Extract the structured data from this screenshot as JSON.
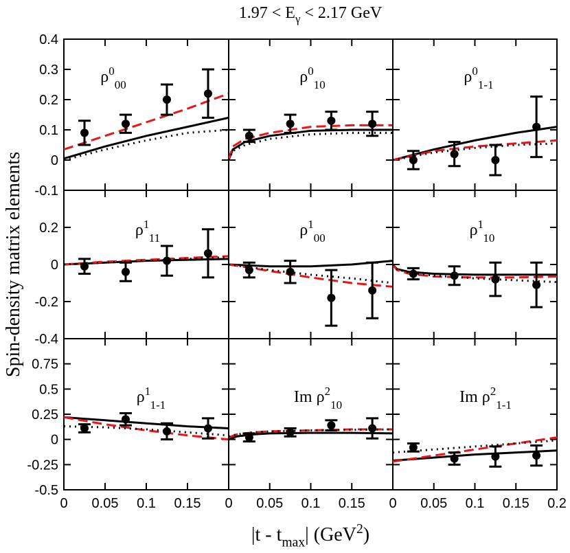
{
  "figure": {
    "title": [
      {
        "text": "1.97 < E"
      },
      {
        "text": "γ",
        "sub": true
      },
      {
        "text": " < 2.17 GeV"
      }
    ],
    "x_label": [
      {
        "text": "|t - t"
      },
      {
        "text": "max",
        "sub": true
      },
      {
        "text": "| (GeV"
      },
      {
        "text": "2",
        "sup": true
      },
      {
        "text": ")"
      }
    ],
    "y_label": "Spin-density matrix elements"
  },
  "chart_data": [
    {
      "type": "errorbar",
      "label": {
        "base": "ρ",
        "sup": "0",
        "sub": "00"
      },
      "xlim": [
        0,
        0.2
      ],
      "ylim": [
        -0.1,
        0.4
      ],
      "yticks": [
        -0.1,
        0,
        0.1,
        0.2,
        0.3,
        0.4
      ],
      "x": [
        0.025,
        0.075,
        0.125,
        0.175
      ],
      "values": [
        0.09,
        0.12,
        0.2,
        0.22
      ],
      "errors": [
        0.04,
        0.03,
        0.05,
        0.08
      ],
      "color": "#000000",
      "lines": [
        {
          "color": "#000000",
          "dash": "solid",
          "x": [
            0,
            0.05,
            0.1,
            0.15,
            0.2
          ],
          "values": [
            0.005,
            0.045,
            0.08,
            0.11,
            0.14
          ]
        },
        {
          "color": "#e8161a",
          "dash": "dashed",
          "x": [
            0,
            0.05,
            0.1,
            0.15,
            0.2
          ],
          "values": [
            0.035,
            0.08,
            0.125,
            0.17,
            0.22
          ]
        },
        {
          "color": "#000000",
          "dash": "dotted",
          "x": [
            0,
            0.05,
            0.1,
            0.15,
            0.2
          ],
          "values": [
            0,
            0.035,
            0.065,
            0.09,
            0.1
          ]
        }
      ]
    },
    {
      "type": "errorbar",
      "label": {
        "base": "ρ",
        "sup": "0",
        "sub": "10"
      },
      "xlim": [
        0,
        0.2
      ],
      "ylim": [
        -0.1,
        0.4
      ],
      "x": [
        0.025,
        0.075,
        0.125,
        0.175
      ],
      "values": [
        0.08,
        0.12,
        0.13,
        0.12
      ],
      "errors": [
        0.02,
        0.03,
        0.03,
        0.04
      ],
      "color": "#000000",
      "lines": [
        {
          "color": "#000000",
          "dash": "solid",
          "x": [
            0,
            0.005,
            0.02,
            0.05,
            0.1,
            0.15,
            0.2
          ],
          "values": [
            0,
            0.035,
            0.06,
            0.08,
            0.097,
            0.1,
            0.1
          ]
        },
        {
          "color": "#e8161a",
          "dash": "dashed",
          "x": [
            0,
            0.005,
            0.02,
            0.05,
            0.1,
            0.15,
            0.2
          ],
          "values": [
            0,
            0.045,
            0.07,
            0.09,
            0.11,
            0.115,
            0.115
          ]
        },
        {
          "color": "#000000",
          "dash": "dotted",
          "x": [
            0,
            0.005,
            0.02,
            0.05,
            0.1,
            0.15,
            0.2
          ],
          "values": [
            0,
            0.03,
            0.05,
            0.07,
            0.085,
            0.09,
            0.09
          ]
        }
      ]
    },
    {
      "type": "errorbar",
      "label": {
        "base": "ρ",
        "sup": "0",
        "sub": "1-1"
      },
      "xlim": [
        0,
        0.2
      ],
      "ylim": [
        -0.1,
        0.4
      ],
      "x": [
        0.025,
        0.075,
        0.125,
        0.175
      ],
      "values": [
        0,
        0.02,
        0,
        0.11
      ],
      "errors": [
        0.03,
        0.04,
        0.05,
        0.1
      ],
      "color": "#000000",
      "lines": [
        {
          "color": "#000000",
          "dash": "solid",
          "x": [
            0,
            0.05,
            0.1,
            0.15,
            0.2
          ],
          "values": [
            0,
            0.035,
            0.065,
            0.09,
            0.11
          ]
        },
        {
          "color": "#e8161a",
          "dash": "dashed",
          "x": [
            0,
            0.05,
            0.1,
            0.15,
            0.2
          ],
          "values": [
            0,
            0.03,
            0.045,
            0.055,
            0.065
          ]
        },
        {
          "color": "#000000",
          "dash": "dotted",
          "x": [
            0,
            0.05,
            0.1,
            0.15,
            0.2
          ],
          "values": [
            0,
            0.025,
            0.04,
            0.05,
            0.055
          ]
        }
      ]
    },
    {
      "type": "errorbar",
      "label": {
        "base": "ρ",
        "sup": "1",
        "sub": "11"
      },
      "xlim": [
        0,
        0.2
      ],
      "ylim": [
        -0.4,
        0.4
      ],
      "yticks": [
        -0.4,
        -0.2,
        0,
        0.2
      ],
      "x": [
        0.025,
        0.075,
        0.125,
        0.175
      ],
      "values": [
        -0.01,
        -0.04,
        0.02,
        0.06
      ],
      "errors": [
        0.04,
        0.05,
        0.08,
        0.13
      ],
      "color": "#000000",
      "lines": [
        {
          "color": "#000000",
          "dash": "solid",
          "x": [
            0,
            0.05,
            0.1,
            0.15,
            0.2
          ],
          "values": [
            0,
            0.01,
            0.02,
            0.025,
            0.03
          ]
        },
        {
          "color": "#e8161a",
          "dash": "dashed",
          "x": [
            0,
            0.05,
            0.1,
            0.15,
            0.2
          ],
          "values": [
            0,
            0.015,
            0.025,
            0.035,
            0.045
          ]
        },
        {
          "color": "#000000",
          "dash": "dotted",
          "x": [
            0,
            0.05,
            0.1,
            0.15,
            0.2
          ],
          "values": [
            0,
            0.01,
            0.02,
            0.03,
            0.04
          ]
        }
      ]
    },
    {
      "type": "errorbar",
      "label": {
        "base": "ρ",
        "sup": "1",
        "sub": "00"
      },
      "xlim": [
        0,
        0.2
      ],
      "ylim": [
        -0.4,
        0.4
      ],
      "x": [
        0.025,
        0.075,
        0.125,
        0.175
      ],
      "values": [
        -0.03,
        -0.04,
        -0.18,
        -0.14
      ],
      "errors": [
        0.04,
        0.06,
        0.15,
        0.15
      ],
      "color": "#000000",
      "lines": [
        {
          "color": "#000000",
          "dash": "solid",
          "x": [
            0,
            0.05,
            0.1,
            0.15,
            0.2
          ],
          "values": [
            0,
            -0.01,
            -0.01,
            0,
            0.02
          ]
        },
        {
          "color": "#e8161a",
          "dash": "dashed",
          "x": [
            0,
            0.05,
            0.1,
            0.15,
            0.2
          ],
          "values": [
            0,
            -0.035,
            -0.07,
            -0.1,
            -0.12
          ]
        },
        {
          "color": "#000000",
          "dash": "dotted",
          "x": [
            0,
            0.05,
            0.1,
            0.15,
            0.2
          ],
          "values": [
            0,
            -0.03,
            -0.055,
            -0.075,
            -0.1
          ]
        }
      ]
    },
    {
      "type": "errorbar",
      "label": {
        "base": "ρ",
        "sup": "1",
        "sub": "10"
      },
      "xlim": [
        0,
        0.2
      ],
      "ylim": [
        -0.4,
        0.4
      ],
      "x": [
        0.025,
        0.075,
        0.125,
        0.175
      ],
      "values": [
        -0.05,
        -0.06,
        -0.08,
        -0.11
      ],
      "errors": [
        0.03,
        0.05,
        0.09,
        0.12
      ],
      "color": "#000000",
      "lines": [
        {
          "color": "#000000",
          "dash": "solid",
          "x": [
            0,
            0.005,
            0.02,
            0.05,
            0.1,
            0.15,
            0.2
          ],
          "values": [
            0,
            -0.025,
            -0.04,
            -0.05,
            -0.055,
            -0.055,
            -0.055
          ]
        },
        {
          "color": "#e8161a",
          "dash": "dashed",
          "x": [
            0,
            0.005,
            0.02,
            0.05,
            0.1,
            0.15,
            0.2
          ],
          "values": [
            0,
            -0.03,
            -0.05,
            -0.065,
            -0.07,
            -0.07,
            -0.065
          ]
        },
        {
          "color": "#000000",
          "dash": "dotted",
          "x": [
            0,
            0.005,
            0.02,
            0.05,
            0.1,
            0.15,
            0.2
          ],
          "values": [
            0,
            -0.025,
            -0.045,
            -0.06,
            -0.075,
            -0.085,
            -0.095
          ]
        }
      ]
    },
    {
      "type": "errorbar",
      "label": {
        "base": "ρ",
        "sup": "1",
        "sub": "1-1"
      },
      "xlim": [
        0,
        0.2
      ],
      "ylim": [
        -0.5,
        1
      ],
      "yticks": [
        -0.5,
        -0.25,
        0,
        0.25,
        0.5,
        0.75
      ],
      "xticks": [
        0,
        0.05,
        0.1,
        0.15
      ],
      "x": [
        0.025,
        0.075,
        0.125,
        0.175
      ],
      "values": [
        0.11,
        0.2,
        0.08,
        0.11
      ],
      "errors": [
        0.04,
        0.06,
        0.08,
        0.1
      ],
      "color": "#000000",
      "lines": [
        {
          "color": "#000000",
          "dash": "solid",
          "x": [
            0,
            0.05,
            0.1,
            0.15,
            0.2
          ],
          "values": [
            0.22,
            0.19,
            0.16,
            0.13,
            0.11
          ]
        },
        {
          "color": "#e8161a",
          "dash": "dashed",
          "x": [
            0,
            0.05,
            0.1,
            0.15,
            0.2
          ],
          "values": [
            0.22,
            0.15,
            0.09,
            0.04,
            0
          ]
        },
        {
          "color": "#000000",
          "dash": "dotted",
          "x": [
            0,
            0.05,
            0.1,
            0.15,
            0.2
          ],
          "values": [
            0.13,
            0.12,
            0.1,
            0.07,
            0.04
          ]
        }
      ]
    },
    {
      "type": "errorbar",
      "label": {
        "base": "Im ρ",
        "sup": "2",
        "sub": "10"
      },
      "xlim": [
        0,
        0.2
      ],
      "ylim": [
        -0.5,
        1
      ],
      "xticks": [
        0,
        0.05,
        0.1,
        0.15
      ],
      "x": [
        0.025,
        0.075,
        0.125,
        0.175
      ],
      "values": [
        0.02,
        0.07,
        0.14,
        0.11
      ],
      "errors": [
        0.04,
        0.04,
        0.05,
        0.1
      ],
      "color": "#000000",
      "lines": [
        {
          "color": "#000000",
          "dash": "solid",
          "x": [
            0,
            0.01,
            0.03,
            0.05,
            0.1,
            0.15,
            0.2
          ],
          "values": [
            0,
            0.03,
            0.05,
            0.06,
            0.065,
            0.065,
            0.06
          ]
        },
        {
          "color": "#e8161a",
          "dash": "dashed",
          "x": [
            0,
            0.01,
            0.03,
            0.05,
            0.1,
            0.15,
            0.2
          ],
          "values": [
            0.02,
            0.05,
            0.07,
            0.08,
            0.09,
            0.1,
            0.1
          ]
        },
        {
          "color": "#000000",
          "dash": "dotted",
          "x": [
            0,
            0.01,
            0.03,
            0.05,
            0.1,
            0.15,
            0.2
          ],
          "values": [
            0.03,
            0.05,
            0.07,
            0.08,
            0.09,
            0.095,
            0.1
          ]
        }
      ]
    },
    {
      "type": "errorbar",
      "label": {
        "base": "Im ρ",
        "sup": "2",
        "sub": "1-1"
      },
      "xlim": [
        0,
        0.2
      ],
      "ylim": [
        -0.5,
        1
      ],
      "xticks": [
        0,
        0.05,
        0.1,
        0.15,
        0.2
      ],
      "x": [
        0.025,
        0.075,
        0.125,
        0.175
      ],
      "values": [
        -0.08,
        -0.19,
        -0.17,
        -0.16
      ],
      "errors": [
        0.04,
        0.06,
        0.1,
        0.1
      ],
      "color": "#000000",
      "lines": [
        {
          "color": "#000000",
          "dash": "solid",
          "x": [
            0,
            0.05,
            0.1,
            0.15,
            0.2
          ],
          "values": [
            -0.21,
            -0.18,
            -0.15,
            -0.13,
            -0.11
          ]
        },
        {
          "color": "#e8161a",
          "dash": "dashed",
          "x": [
            0,
            0.05,
            0.1,
            0.15,
            0.2
          ],
          "values": [
            -0.22,
            -0.16,
            -0.1,
            -0.04,
            0.02
          ]
        },
        {
          "color": "#000000",
          "dash": "dotted",
          "x": [
            0,
            0.05,
            0.1,
            0.15,
            0.2
          ],
          "values": [
            -0.13,
            -0.1,
            -0.07,
            -0.04,
            -0.01
          ]
        }
      ]
    }
  ]
}
